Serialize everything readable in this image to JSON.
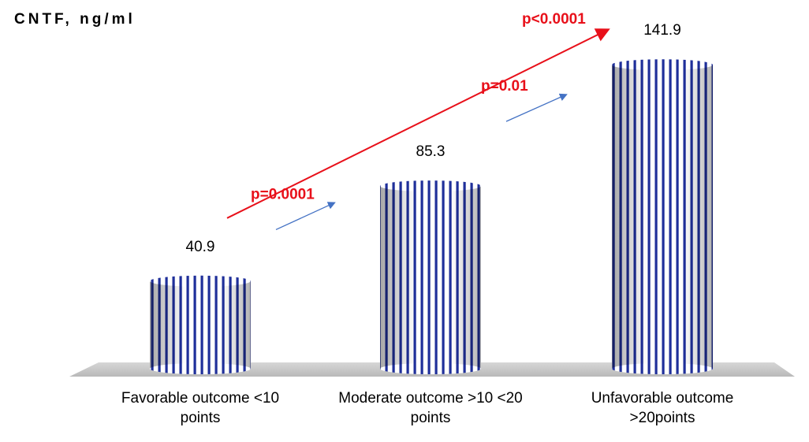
{
  "chart_data": {
    "type": "bar",
    "title": "",
    "ylabel": "CNTF, ng/ml",
    "xlabel": "",
    "categories": [
      "Favorable outcome  <10\npoints",
      "Moderate outcome >10 <20\npoints",
      "Unfavorable outcome\n>20points"
    ],
    "values": [
      40.9,
      85.3,
      141.9
    ],
    "value_labels": [
      "40.9",
      "85.3",
      "141.9"
    ],
    "ylim": [
      0,
      160
    ],
    "grid": false,
    "annotations": [
      {
        "text": "p=0.0001",
        "from": 0,
        "to": 1,
        "color": "#e8101a",
        "arrow_color": "#4472c4"
      },
      {
        "text": "p=0.01",
        "from": 1,
        "to": 2,
        "color": "#e8101a",
        "arrow_color": "#4472c4"
      },
      {
        "text": "p<0.0001",
        "from": 0,
        "to": 2,
        "color": "#e8101a",
        "arrow_color": "#e8101a"
      }
    ],
    "bar_stripe_color": "#1f2f9a"
  }
}
